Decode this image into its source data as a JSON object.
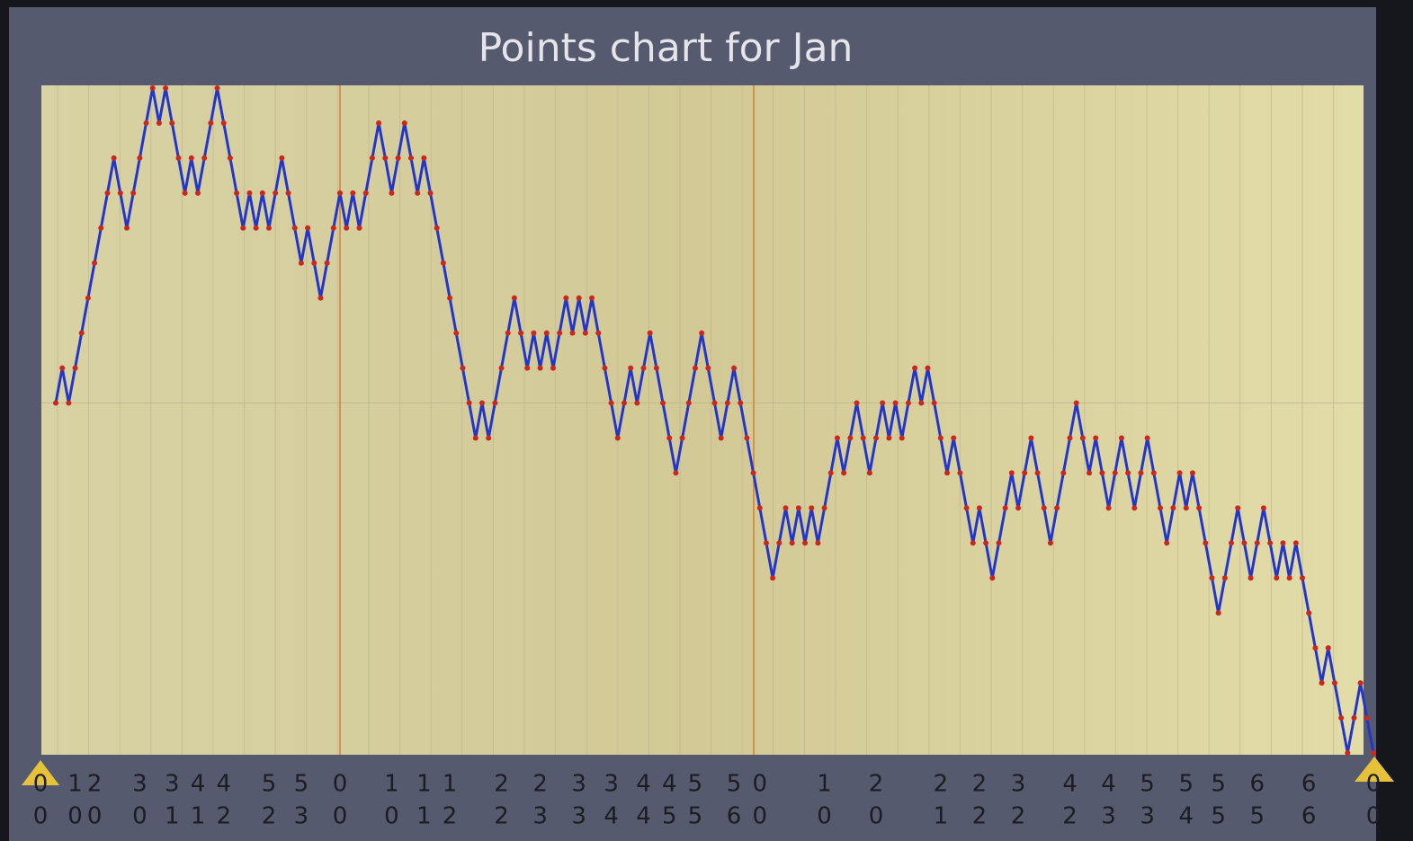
{
  "chart_data": {
    "type": "line",
    "title": "Points chart for Jan",
    "values": [
      0,
      1,
      0,
      1,
      2,
      3,
      4,
      5,
      6,
      7,
      6,
      5,
      6,
      7,
      8,
      9,
      8,
      9,
      8,
      7,
      6,
      7,
      6,
      7,
      8,
      9,
      8,
      7,
      6,
      5,
      6,
      5,
      6,
      5,
      6,
      7,
      6,
      5,
      4,
      5,
      4,
      3,
      4,
      5,
      6,
      5,
      6,
      5,
      6,
      7,
      8,
      7,
      6,
      7,
      8,
      7,
      6,
      7,
      6,
      5,
      4,
      3,
      2,
      1,
      0,
      -1,
      0,
      -1,
      0,
      1,
      2,
      3,
      2,
      1,
      2,
      1,
      2,
      1,
      2,
      3,
      2,
      3,
      2,
      3,
      2,
      1,
      0,
      -1,
      0,
      1,
      0,
      1,
      2,
      1,
      0,
      -1,
      -2,
      -1,
      0,
      1,
      2,
      1,
      0,
      -1,
      0,
      1,
      0,
      -1,
      -2,
      -3,
      -4,
      -5,
      -4,
      -3,
      -4,
      -3,
      -4,
      -3,
      -4,
      -3,
      -2,
      -1,
      -2,
      -1,
      0,
      -1,
      -2,
      -1,
      0,
      -1,
      0,
      -1,
      0,
      1,
      0,
      1,
      0,
      -1,
      -2,
      -1,
      -2,
      -3,
      -4,
      -3,
      -4,
      -5,
      -4,
      -3,
      -2,
      -3,
      -2,
      -1,
      -2,
      -3,
      -4,
      -3,
      -2,
      -1,
      0,
      -1,
      -2,
      -1,
      -2,
      -3,
      -2,
      -1,
      -2,
      -3,
      -2,
      -1,
      -2,
      -3,
      -4,
      -3,
      -2,
      -3,
      -2,
      -3,
      -4,
      -5,
      -6,
      -5,
      -4,
      -3,
      -4,
      -5,
      -4,
      -3,
      -4,
      -5,
      -4,
      -5,
      -4,
      -5,
      -6,
      -7,
      -8,
      -7,
      -8,
      -9,
      -10,
      -9,
      -8,
      -9,
      -10
    ],
    "x_labels_top": [
      "0",
      null,
      null,
      "1",
      null,
      null,
      "2",
      null,
      null,
      null,
      null,
      null,
      null,
      "3",
      null,
      null,
      null,
      null,
      "3",
      null,
      null,
      null,
      "4",
      null,
      null,
      null,
      "4",
      null,
      null,
      null,
      null,
      null,
      null,
      "5",
      null,
      null,
      null,
      null,
      "5",
      null,
      null,
      null,
      null,
      null,
      "0",
      null,
      null,
      null,
      null,
      null,
      null,
      null,
      "1",
      null,
      null,
      null,
      null,
      "1",
      null,
      null,
      null,
      "1",
      null,
      null,
      null,
      null,
      null,
      null,
      null,
      "2",
      null,
      null,
      null,
      null,
      null,
      "2",
      null,
      null,
      null,
      null,
      null,
      "3",
      null,
      null,
      null,
      null,
      "3",
      null,
      null,
      null,
      null,
      "4",
      null,
      null,
      null,
      "4",
      null,
      null,
      null,
      "5",
      null,
      null,
      null,
      null,
      null,
      "5",
      null,
      null,
      null,
      "0",
      null,
      null,
      null,
      null,
      null,
      null,
      null,
      null,
      null,
      "1",
      null,
      null,
      null,
      null,
      null,
      null,
      null,
      "2",
      null,
      null,
      null,
      null,
      null,
      null,
      null,
      null,
      null,
      "2",
      null,
      null,
      null,
      null,
      null,
      "2",
      null,
      null,
      null,
      null,
      null,
      "3",
      null,
      null,
      null,
      null,
      null,
      null,
      null,
      "4",
      null,
      null,
      null,
      null,
      null,
      "4",
      null,
      null,
      null,
      null,
      null,
      "5",
      null,
      null,
      null,
      null,
      null,
      "5",
      null,
      null,
      null,
      null,
      "5",
      null,
      null,
      null,
      null,
      null,
      "6",
      null,
      null,
      null,
      null,
      null,
      null,
      null,
      "6",
      null,
      null,
      null,
      null,
      null,
      null,
      null,
      null,
      null,
      "0"
    ],
    "x_labels_bottom": [
      "0",
      null,
      null,
      "0",
      null,
      null,
      "0",
      null,
      null,
      null,
      null,
      null,
      null,
      "0",
      null,
      null,
      null,
      null,
      "1",
      null,
      null,
      null,
      "1",
      null,
      null,
      null,
      "2",
      null,
      null,
      null,
      null,
      null,
      null,
      "2",
      null,
      null,
      null,
      null,
      "3",
      null,
      null,
      null,
      null,
      null,
      "0",
      null,
      null,
      null,
      null,
      null,
      null,
      null,
      "0",
      null,
      null,
      null,
      null,
      "1",
      null,
      null,
      null,
      "2",
      null,
      null,
      null,
      null,
      null,
      null,
      null,
      "2",
      null,
      null,
      null,
      null,
      null,
      "3",
      null,
      null,
      null,
      null,
      null,
      "3",
      null,
      null,
      null,
      null,
      "4",
      null,
      null,
      null,
      null,
      "4",
      null,
      null,
      null,
      "5",
      null,
      null,
      null,
      "5",
      null,
      null,
      null,
      null,
      null,
      "6",
      null,
      null,
      null,
      "0",
      null,
      null,
      null,
      null,
      null,
      null,
      null,
      null,
      null,
      "0",
      null,
      null,
      null,
      null,
      null,
      null,
      null,
      "0",
      null,
      null,
      null,
      null,
      null,
      null,
      null,
      null,
      null,
      "1",
      null,
      null,
      null,
      null,
      null,
      "2",
      null,
      null,
      null,
      null,
      null,
      "2",
      null,
      null,
      null,
      null,
      null,
      null,
      null,
      "2",
      null,
      null,
      null,
      null,
      null,
      "3",
      null,
      null,
      null,
      null,
      null,
      "3",
      null,
      null,
      null,
      null,
      null,
      "4",
      null,
      null,
      null,
      null,
      "5",
      null,
      null,
      null,
      null,
      null,
      "5",
      null,
      null,
      null,
      null,
      null,
      null,
      null,
      "6",
      null,
      null,
      null,
      null,
      null,
      null,
      null,
      null,
      null,
      "0"
    ],
    "ylim": [
      -10,
      9
    ],
    "line_color": "#2436c8",
    "marker_color": "#c8281e"
  }
}
